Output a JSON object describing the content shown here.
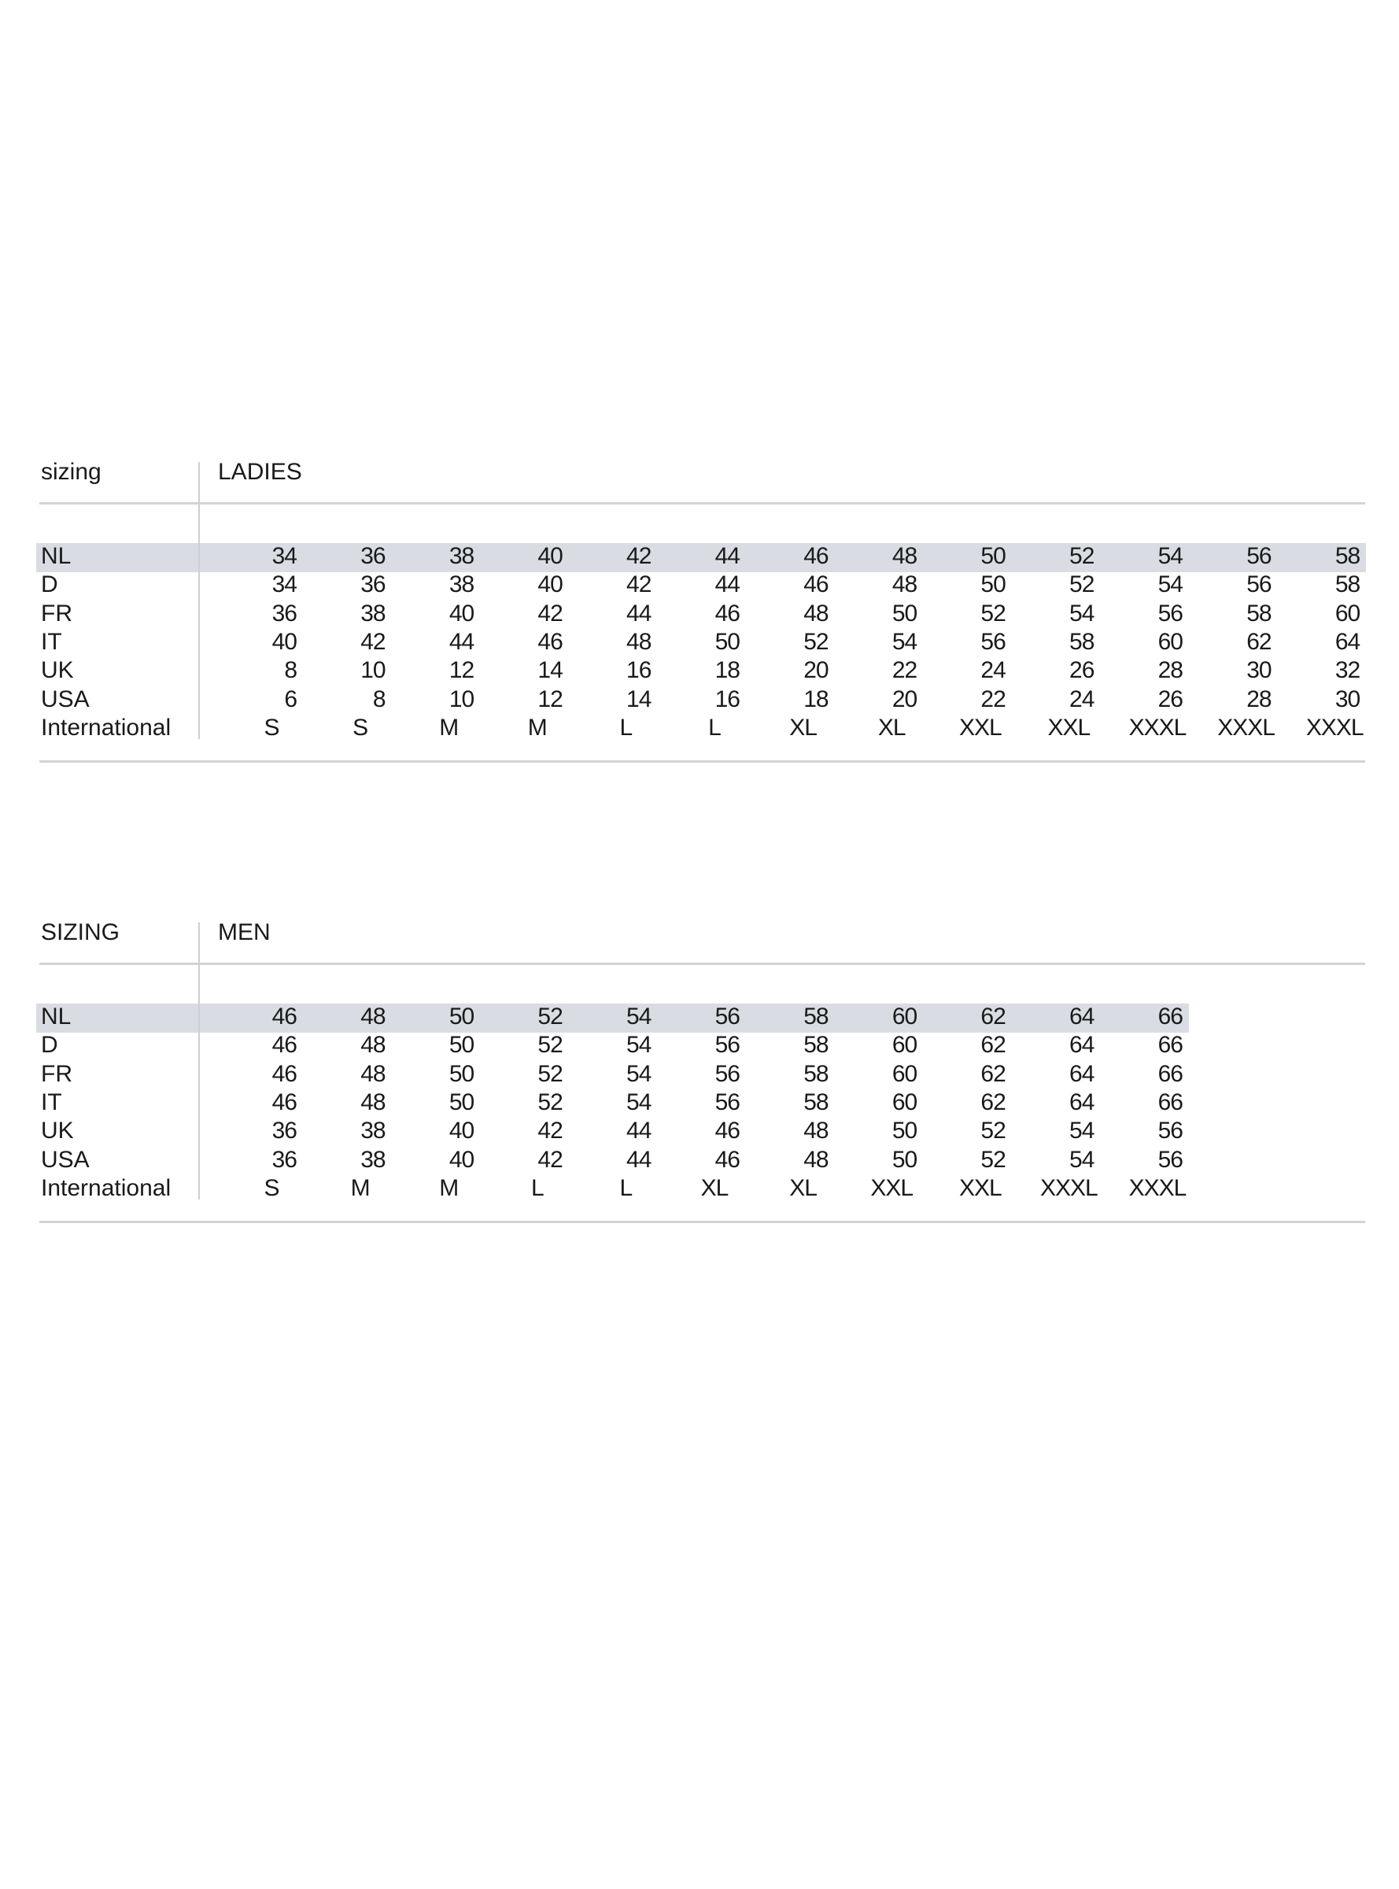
{
  "tables": [
    {
      "label": "sizing",
      "title": "LADIES",
      "band_color": "#d9dde3",
      "rows": [
        {
          "name": "NL",
          "values": [
            "34",
            "36",
            "38",
            "40",
            "42",
            "44",
            "46",
            "48",
            "50",
            "52",
            "54",
            "56",
            "58"
          ]
        },
        {
          "name": "D",
          "values": [
            "34",
            "36",
            "38",
            "40",
            "42",
            "44",
            "46",
            "48",
            "50",
            "52",
            "54",
            "56",
            "58"
          ]
        },
        {
          "name": "FR",
          "values": [
            "36",
            "38",
            "40",
            "42",
            "44",
            "46",
            "48",
            "50",
            "52",
            "54",
            "56",
            "58",
            "60"
          ]
        },
        {
          "name": "IT",
          "values": [
            "40",
            "42",
            "44",
            "46",
            "48",
            "50",
            "52",
            "54",
            "56",
            "58",
            "60",
            "62",
            "64"
          ]
        },
        {
          "name": "UK",
          "values": [
            "8",
            "10",
            "12",
            "14",
            "16",
            "18",
            "20",
            "22",
            "24",
            "26",
            "28",
            "30",
            "32"
          ]
        },
        {
          "name": "USA",
          "values": [
            "6",
            "8",
            "10",
            "12",
            "14",
            "16",
            "18",
            "20",
            "22",
            "24",
            "26",
            "28",
            "30"
          ]
        },
        {
          "name": "International",
          "values": [
            "S",
            "S",
            "M",
            "M",
            "L",
            "L",
            "XL",
            "XL",
            "XXL",
            "XXL",
            "XXXL",
            "XXXL",
            "XXXL"
          ]
        }
      ]
    },
    {
      "label": "SIZING",
      "title": "MEN",
      "band_color": "#d9dde3",
      "rows": [
        {
          "name": "NL",
          "values": [
            "46",
            "48",
            "50",
            "52",
            "54",
            "56",
            "58",
            "60",
            "62",
            "64",
            "66"
          ]
        },
        {
          "name": "D",
          "values": [
            "46",
            "48",
            "50",
            "52",
            "54",
            "56",
            "58",
            "60",
            "62",
            "64",
            "66"
          ]
        },
        {
          "name": "FR",
          "values": [
            "46",
            "48",
            "50",
            "52",
            "54",
            "56",
            "58",
            "60",
            "62",
            "64",
            "66"
          ]
        },
        {
          "name": "IT",
          "values": [
            "46",
            "48",
            "50",
            "52",
            "54",
            "56",
            "58",
            "60",
            "62",
            "64",
            "66"
          ]
        },
        {
          "name": "UK",
          "values": [
            "36",
            "38",
            "40",
            "42",
            "44",
            "46",
            "48",
            "50",
            "52",
            "54",
            "56"
          ]
        },
        {
          "name": "USA",
          "values": [
            "36",
            "38",
            "40",
            "42",
            "44",
            "46",
            "48",
            "50",
            "52",
            "54",
            "56"
          ]
        },
        {
          "name": "International",
          "values": [
            "S",
            "M",
            "M",
            "L",
            "L",
            "XL",
            "XL",
            "XXL",
            "XXL",
            "XXXL",
            "XXXL"
          ]
        }
      ]
    }
  ]
}
